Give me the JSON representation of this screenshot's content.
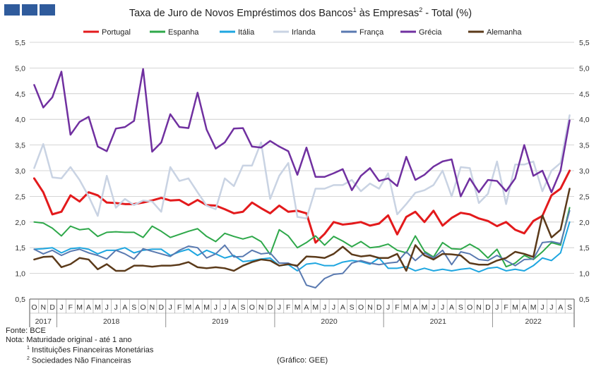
{
  "title": {
    "text": "Taxa de Juro de Novos Empréstimos dos Bancos",
    "sup1": "1",
    "mid": " às Empresas",
    "sup2": "2",
    "tail": " - Total (%)"
  },
  "logo": {
    "icon": "gee-logo-icon",
    "color": "#2f5b9c"
  },
  "notes": {
    "source": "Fonte: BCE",
    "note": "Nota: Maturidade original - até 1 ano",
    "fn1_mark": "1",
    "fn1": " Instituições Financeiras Monetárias",
    "fn2_mark": "2",
    "fn2": " Sociedades Não Financeiras",
    "credit": "(Gráfico: GEE)"
  },
  "chart_data": {
    "type": "line",
    "ylim": [
      0.5,
      5.5
    ],
    "yticks": [
      0.5,
      1.0,
      1.5,
      2.0,
      2.5,
      3.0,
      3.5,
      4.0,
      4.5,
      5.0,
      5.5
    ],
    "ytick_labels": [
      "0,5",
      "1,0",
      "1,5",
      "2,0",
      "2,5",
      "3,0",
      "3,5",
      "4,0",
      "4,5",
      "5,0",
      "5,5"
    ],
    "grid": true,
    "legend": "top",
    "x": [
      "O",
      "N",
      "D",
      "J",
      "F",
      "M",
      "A",
      "M",
      "J",
      "J",
      "A",
      "S",
      "O",
      "N",
      "D",
      "J",
      "F",
      "M",
      "A",
      "M",
      "J",
      "J",
      "A",
      "S",
      "O",
      "N",
      "D",
      "J",
      "F",
      "M",
      "A",
      "M",
      "J",
      "J",
      "A",
      "S",
      "O",
      "N",
      "D",
      "J",
      "F",
      "M",
      "A",
      "M",
      "J",
      "J",
      "A",
      "S",
      "O",
      "N",
      "D",
      "J",
      "F",
      "M",
      "A",
      "M",
      "J",
      "J",
      "A",
      "S"
    ],
    "years": [
      {
        "label": "2017",
        "start": 0,
        "end": 2
      },
      {
        "label": "2018",
        "start": 3,
        "end": 14
      },
      {
        "label": "2019",
        "start": 15,
        "end": 26
      },
      {
        "label": "2020",
        "start": 27,
        "end": 38
      },
      {
        "label": "2021",
        "start": 39,
        "end": 50
      },
      {
        "label": "2022",
        "start": 51,
        "end": 59
      }
    ],
    "series": [
      {
        "name": "Portugal",
        "color": "#e31a1c",
        "width": 3,
        "values": [
          2.85,
          2.58,
          2.15,
          2.2,
          2.52,
          2.4,
          2.58,
          2.52,
          2.38,
          2.37,
          2.35,
          2.35,
          2.38,
          2.42,
          2.47,
          2.42,
          2.43,
          2.33,
          2.43,
          2.33,
          2.32,
          2.25,
          2.17,
          2.2,
          2.38,
          2.27,
          2.17,
          2.32,
          2.2,
          2.22,
          2.17,
          1.6,
          1.77,
          2.0,
          1.95,
          1.97,
          2.0,
          1.93,
          1.97,
          2.13,
          1.76,
          2.1,
          2.2,
          2.0,
          2.22,
          1.93,
          2.08,
          2.18,
          2.15,
          2.07,
          2.02,
          1.92,
          2.0,
          1.85,
          1.78,
          2.02,
          2.12,
          2.52,
          2.65,
          3.0
        ]
      },
      {
        "name": "Espanha",
        "color": "#2ea84a",
        "width": 2,
        "values": [
          2.0,
          1.98,
          1.88,
          1.73,
          1.92,
          1.85,
          1.87,
          1.72,
          1.8,
          1.81,
          1.8,
          1.8,
          1.7,
          1.92,
          1.82,
          1.7,
          1.76,
          1.82,
          1.87,
          1.72,
          1.62,
          1.78,
          1.72,
          1.67,
          1.72,
          1.62,
          1.37,
          1.85,
          1.73,
          1.5,
          1.6,
          1.73,
          1.55,
          1.72,
          1.63,
          1.52,
          1.62,
          1.5,
          1.52,
          1.57,
          1.45,
          1.4,
          1.73,
          1.43,
          1.32,
          1.6,
          1.48,
          1.47,
          1.57,
          1.47,
          1.3,
          1.47,
          1.13,
          1.2,
          1.35,
          1.27,
          1.42,
          1.6,
          1.55,
          2.28
        ]
      },
      {
        "name": "Itália",
        "color": "#1ea6e0",
        "width": 2,
        "values": [
          1.47,
          1.48,
          1.5,
          1.4,
          1.48,
          1.5,
          1.47,
          1.38,
          1.45,
          1.45,
          1.5,
          1.4,
          1.45,
          1.47,
          1.47,
          1.35,
          1.42,
          1.47,
          1.35,
          1.45,
          1.38,
          1.3,
          1.35,
          1.23,
          1.25,
          1.28,
          1.3,
          1.15,
          1.17,
          1.05,
          1.18,
          1.2,
          1.15,
          1.15,
          1.22,
          1.25,
          1.23,
          1.18,
          1.3,
          1.1,
          1.1,
          1.13,
          1.05,
          1.1,
          1.05,
          1.08,
          1.05,
          1.08,
          1.1,
          1.03,
          1.1,
          1.12,
          1.05,
          1.08,
          1.05,
          1.15,
          1.3,
          1.25,
          1.4,
          2.0
        ]
      },
      {
        "name": "Irlanda",
        "color": "#c9d3e3",
        "width": 2.5,
        "values": [
          3.05,
          3.52,
          2.87,
          2.85,
          3.07,
          2.82,
          2.5,
          2.12,
          2.9,
          2.28,
          2.45,
          2.33,
          2.42,
          2.4,
          2.2,
          3.07,
          2.8,
          2.85,
          2.58,
          2.32,
          2.25,
          2.85,
          2.7,
          3.1,
          3.1,
          3.55,
          2.45,
          2.9,
          3.15,
          2.1,
          2.07,
          2.65,
          2.65,
          2.72,
          2.72,
          2.82,
          2.6,
          2.75,
          2.65,
          2.95,
          2.15,
          2.35,
          2.57,
          2.62,
          2.72,
          3.0,
          2.5,
          3.07,
          3.05,
          2.37,
          2.55,
          3.18,
          2.35,
          3.12,
          3.12,
          3.18,
          2.6,
          3.0,
          3.15,
          4.08
        ]
      },
      {
        "name": "França",
        "color": "#5979b0",
        "width": 2,
        "values": [
          1.47,
          1.38,
          1.45,
          1.35,
          1.43,
          1.47,
          1.4,
          1.35,
          1.28,
          1.45,
          1.38,
          1.28,
          1.48,
          1.43,
          1.38,
          1.33,
          1.45,
          1.53,
          1.5,
          1.3,
          1.38,
          1.55,
          1.32,
          1.33,
          1.45,
          1.38,
          1.4,
          1.2,
          1.2,
          1.13,
          0.77,
          0.72,
          0.9,
          0.98,
          1.0,
          1.2,
          1.25,
          1.2,
          1.17,
          1.2,
          1.22,
          1.42,
          1.25,
          1.4,
          1.3,
          1.45,
          1.17,
          1.42,
          1.38,
          1.27,
          1.25,
          1.35,
          1.25,
          1.15,
          1.27,
          1.28,
          1.6,
          1.62,
          1.58,
          2.22
        ]
      },
      {
        "name": "Grécia",
        "color": "#7030a0",
        "width": 2.5,
        "values": [
          4.67,
          4.23,
          4.43,
          4.93,
          3.7,
          3.95,
          4.05,
          3.47,
          3.38,
          3.82,
          3.85,
          3.97,
          4.98,
          3.37,
          3.55,
          4.1,
          3.85,
          3.83,
          4.52,
          3.8,
          3.43,
          3.55,
          3.82,
          3.83,
          3.47,
          3.45,
          3.58,
          3.47,
          3.38,
          2.92,
          3.45,
          2.88,
          2.88,
          2.95,
          3.03,
          2.62,
          2.9,
          3.05,
          2.8,
          2.85,
          2.7,
          3.27,
          2.82,
          2.92,
          3.08,
          3.18,
          3.22,
          2.5,
          2.85,
          2.58,
          2.82,
          2.8,
          2.6,
          2.85,
          3.5,
          2.9,
          3.0,
          2.58,
          3.0,
          3.98
        ]
      },
      {
        "name": "Alemanha",
        "color": "#5b3a1a",
        "width": 2.5,
        "values": [
          1.27,
          1.32,
          1.33,
          1.12,
          1.18,
          1.3,
          1.27,
          1.08,
          1.18,
          1.05,
          1.05,
          1.15,
          1.15,
          1.13,
          1.15,
          1.15,
          1.17,
          1.22,
          1.12,
          1.1,
          1.12,
          1.1,
          1.05,
          1.15,
          1.22,
          1.27,
          1.25,
          1.15,
          1.18,
          1.15,
          1.33,
          1.32,
          1.3,
          1.38,
          1.52,
          1.37,
          1.33,
          1.35,
          1.3,
          1.3,
          1.38,
          1.05,
          1.55,
          1.35,
          1.27,
          1.38,
          1.37,
          1.35,
          1.2,
          1.17,
          1.17,
          1.25,
          1.3,
          1.42,
          1.38,
          1.32,
          2.13,
          1.7,
          1.85,
          2.65
        ]
      }
    ]
  }
}
